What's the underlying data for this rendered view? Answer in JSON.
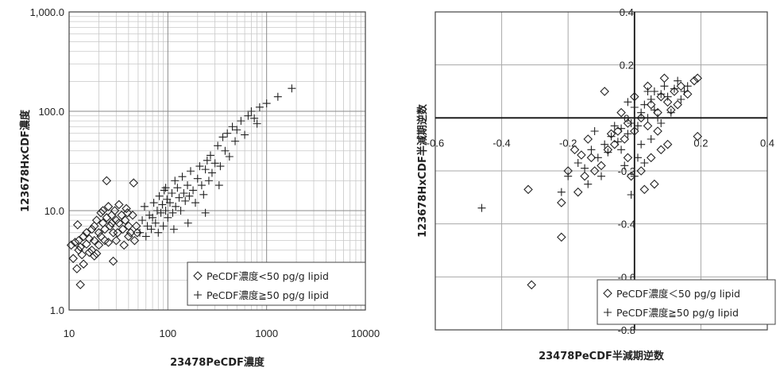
{
  "chart_data": [
    {
      "type": "scatter",
      "xlabel": "23478PeCDF濃度",
      "ylabel": "123678HxCDF濃度",
      "x_scale": "log",
      "y_scale": "log",
      "xlim": [
        10,
        10000
      ],
      "ylim": [
        1,
        1000
      ],
      "grid": true,
      "x_ticks": [
        "10",
        "100",
        "1000",
        "10000"
      ],
      "y_ticks": [
        "1.0",
        "10.0",
        "100.0",
        "1,000.0"
      ],
      "legend_position": "bottom-right",
      "series": [
        {
          "name": "PeCDF濃度<50 pg/g lipid",
          "marker": "diamond",
          "color": "#222222",
          "points": [
            [
              10.5,
              4.5
            ],
            [
              11,
              3.3
            ],
            [
              11.5,
              4.8
            ],
            [
              12,
              2.6
            ],
            [
              12.5,
              5.0
            ],
            [
              12.2,
              7.2
            ],
            [
              13,
              1.8
            ],
            [
              13,
              4.3
            ],
            [
              13.5,
              3.6
            ],
            [
              14,
              5.5
            ],
            [
              14,
              2.9
            ],
            [
              15,
              4.6
            ],
            [
              15,
              6.0
            ],
            [
              16,
              3.8
            ],
            [
              16,
              5.2
            ],
            [
              17,
              6.5
            ],
            [
              17,
              4.0
            ],
            [
              18,
              5.0
            ],
            [
              18,
              7.0
            ],
            [
              19,
              8.0
            ],
            [
              19,
              3.7
            ],
            [
              20,
              6.0
            ],
            [
              20,
              4.5
            ],
            [
              21,
              9.5
            ],
            [
              21,
              5.5
            ],
            [
              22,
              10.0
            ],
            [
              22,
              7.5
            ],
            [
              23,
              6.5
            ],
            [
              24,
              8.5
            ],
            [
              24,
              20.0
            ],
            [
              25,
              4.8
            ],
            [
              25,
              11.0
            ],
            [
              26,
              7.0
            ],
            [
              27,
              9.0
            ],
            [
              28,
              6.0
            ],
            [
              28,
              3.1
            ],
            [
              29,
              10.0
            ],
            [
              30,
              8.0
            ],
            [
              30,
              5.0
            ],
            [
              32,
              11.5
            ],
            [
              32,
              7.5
            ],
            [
              34,
              9.0
            ],
            [
              35,
              6.5
            ],
            [
              36,
              4.5
            ],
            [
              37,
              8.0
            ],
            [
              38,
              10.5
            ],
            [
              40,
              7.0
            ],
            [
              40,
              5.5
            ],
            [
              42,
              6.0
            ],
            [
              44,
              9.0
            ],
            [
              45,
              19.0
            ],
            [
              46,
              5.0
            ],
            [
              48,
              7.0
            ],
            [
              49,
              6.0
            ],
            [
              23,
              5.0
            ],
            [
              27,
              7.5
            ],
            [
              31,
              6.0
            ],
            [
              39,
              9.5
            ],
            [
              12.5,
              4.0
            ],
            [
              18,
              3.5
            ]
          ]
        },
        {
          "name": "PeCDF濃度≧50 pg/g lipid",
          "marker": "plus",
          "color": "#222222",
          "points": [
            [
              52,
              6.0
            ],
            [
              55,
              8.0
            ],
            [
              58,
              11.0
            ],
            [
              60,
              5.5
            ],
            [
              62,
              7.0
            ],
            [
              65,
              9.0
            ],
            [
              68,
              6.5
            ],
            [
              70,
              8.5
            ],
            [
              72,
              12.0
            ],
            [
              75,
              7.5
            ],
            [
              78,
              10.0
            ],
            [
              80,
              6.0
            ],
            [
              82,
              14.0
            ],
            [
              85,
              9.5
            ],
            [
              88,
              11.5
            ],
            [
              90,
              7.0
            ],
            [
              92,
              16.0
            ],
            [
              95,
              10.0
            ],
            [
              98,
              13.0
            ],
            [
              100,
              8.5
            ],
            [
              105,
              12.0
            ],
            [
              110,
              15.0
            ],
            [
              112,
              9.5
            ],
            [
              118,
              20.0
            ],
            [
              120,
              11.0
            ],
            [
              125,
              17.0
            ],
            [
              130,
              13.5
            ],
            [
              135,
              10.0
            ],
            [
              140,
              22.0
            ],
            [
              145,
              15.0
            ],
            [
              150,
              12.5
            ],
            [
              158,
              18.0
            ],
            [
              165,
              14.0
            ],
            [
              170,
              25.0
            ],
            [
              180,
              16.0
            ],
            [
              190,
              12.0
            ],
            [
              200,
              21.0
            ],
            [
              210,
              28.0
            ],
            [
              220,
              18.0
            ],
            [
              230,
              14.5
            ],
            [
              240,
              26.0
            ],
            [
              250,
              32.0
            ],
            [
              260,
              20.0
            ],
            [
              270,
              36.0
            ],
            [
              280,
              24.0
            ],
            [
              300,
              30.0
            ],
            [
              320,
              45.0
            ],
            [
              340,
              28.0
            ],
            [
              360,
              55.0
            ],
            [
              380,
              40.0
            ],
            [
              400,
              60.0
            ],
            [
              420,
              35.0
            ],
            [
              450,
              70.0
            ],
            [
              480,
              50.0
            ],
            [
              500,
              65.0
            ],
            [
              550,
              80.0
            ],
            [
              600,
              58.0
            ],
            [
              650,
              90.0
            ],
            [
              700,
              100.0
            ],
            [
              750,
              85.0
            ],
            [
              800,
              75.0
            ],
            [
              850,
              110.0
            ],
            [
              1000,
              120.0
            ],
            [
              1300,
              140.0
            ],
            [
              1800,
              170.0
            ],
            [
              115,
              6.5
            ],
            [
              240,
              9.5
            ],
            [
              330,
              18.0
            ],
            [
              160,
              7.5
            ],
            [
              95,
              17.0
            ]
          ]
        }
      ]
    },
    {
      "type": "scatter",
      "xlabel": "23478PeCDF半減期逆数",
      "ylabel": "123678HxCDF半減期逆数",
      "xlim": [
        -0.6,
        0.4
      ],
      "ylim": [
        -0.8,
        0.4
      ],
      "grid": true,
      "x_ticks": [
        "-0.6",
        "-0.4",
        "-0.2",
        "0",
        "0.2",
        "0.4"
      ],
      "y_ticks": [
        "-0.8",
        "-0.6",
        "-0.4",
        "-0.2",
        "0",
        "0.2",
        "0.4"
      ],
      "legend_position": "bottom-right",
      "series": [
        {
          "name": "PeCDF濃度＜50 pg/g lipid",
          "marker": "diamond",
          "color": "#222222",
          "points": [
            [
              -0.31,
              -0.63
            ],
            [
              -0.22,
              -0.45
            ],
            [
              -0.22,
              -0.32
            ],
            [
              -0.32,
              -0.27
            ],
            [
              -0.2,
              -0.2
            ],
            [
              -0.17,
              -0.28
            ],
            [
              -0.15,
              -0.22
            ],
            [
              -0.13,
              -0.15
            ],
            [
              -0.1,
              -0.18
            ],
            [
              -0.08,
              -0.12
            ],
            [
              -0.06,
              -0.1
            ],
            [
              -0.05,
              -0.05
            ],
            [
              -0.03,
              -0.08
            ],
            [
              -0.02,
              -0.02
            ],
            [
              0.0,
              -0.05
            ],
            [
              0.02,
              0.0
            ],
            [
              0.04,
              -0.03
            ],
            [
              0.05,
              0.05
            ],
            [
              0.07,
              0.02
            ],
            [
              0.08,
              0.08
            ],
            [
              0.1,
              0.06
            ],
            [
              0.12,
              0.1
            ],
            [
              0.14,
              0.12
            ],
            [
              0.16,
              0.09
            ],
            [
              0.18,
              0.14
            ],
            [
              0.19,
              0.15
            ],
            [
              0.19,
              -0.07
            ],
            [
              0.1,
              -0.1
            ],
            [
              0.05,
              -0.15
            ],
            [
              0.02,
              -0.2
            ],
            [
              -0.01,
              -0.22
            ],
            [
              0.03,
              -0.27
            ],
            [
              0.06,
              -0.25
            ],
            [
              -0.12,
              -0.2
            ],
            [
              -0.18,
              -0.12
            ],
            [
              -0.09,
              0.1
            ],
            [
              0.04,
              0.12
            ],
            [
              0.09,
              0.15
            ],
            [
              -0.04,
              0.02
            ],
            [
              -0.07,
              -0.06
            ],
            [
              0.0,
              0.08
            ],
            [
              0.11,
              0.03
            ],
            [
              -0.14,
              -0.08
            ],
            [
              0.07,
              -0.05
            ],
            [
              -0.02,
              -0.15
            ],
            [
              0.13,
              0.05
            ],
            [
              -0.16,
              -0.14
            ],
            [
              0.08,
              -0.12
            ]
          ]
        },
        {
          "name": "PeCDF濃度≧50 pg/g lipid",
          "marker": "plus",
          "color": "#222222",
          "points": [
            [
              -0.46,
              -0.34
            ],
            [
              -0.22,
              -0.28
            ],
            [
              -0.2,
              -0.22
            ],
            [
              -0.17,
              -0.17
            ],
            [
              -0.15,
              -0.19
            ],
            [
              -0.13,
              -0.12
            ],
            [
              -0.11,
              -0.15
            ],
            [
              -0.09,
              -0.1
            ],
            [
              -0.07,
              -0.07
            ],
            [
              -0.05,
              -0.09
            ],
            [
              -0.04,
              -0.04
            ],
            [
              -0.02,
              -0.06
            ],
            [
              -0.01,
              -0.02
            ],
            [
              0.0,
              0.0
            ],
            [
              0.01,
              -0.03
            ],
            [
              0.02,
              0.02
            ],
            [
              0.03,
              0.05
            ],
            [
              0.04,
              0.0
            ],
            [
              0.05,
              0.07
            ],
            [
              0.06,
              0.03
            ],
            [
              0.08,
              0.09
            ],
            [
              0.09,
              0.12
            ],
            [
              0.1,
              0.08
            ],
            [
              0.12,
              0.11
            ],
            [
              0.13,
              0.14
            ],
            [
              0.15,
              0.1
            ],
            [
              0.16,
              0.12
            ],
            [
              0.01,
              -0.15
            ],
            [
              -0.01,
              -0.29
            ],
            [
              0.0,
              -0.22
            ],
            [
              -0.03,
              -0.18
            ],
            [
              0.02,
              -0.1
            ],
            [
              -0.06,
              -0.03
            ],
            [
              0.05,
              -0.08
            ],
            [
              0.07,
              0.0
            ],
            [
              -0.08,
              -0.13
            ],
            [
              0.04,
              0.1
            ],
            [
              -0.02,
              0.06
            ],
            [
              0.11,
              0.02
            ],
            [
              -0.12,
              -0.05
            ],
            [
              0.03,
              -0.17
            ],
            [
              -0.1,
              -0.22
            ],
            [
              0.06,
              0.1
            ],
            [
              0.14,
              0.07
            ],
            [
              -0.04,
              -0.12
            ],
            [
              0.0,
              0.04
            ],
            [
              0.08,
              -0.02
            ],
            [
              -0.14,
              -0.25
            ]
          ]
        }
      ]
    }
  ]
}
